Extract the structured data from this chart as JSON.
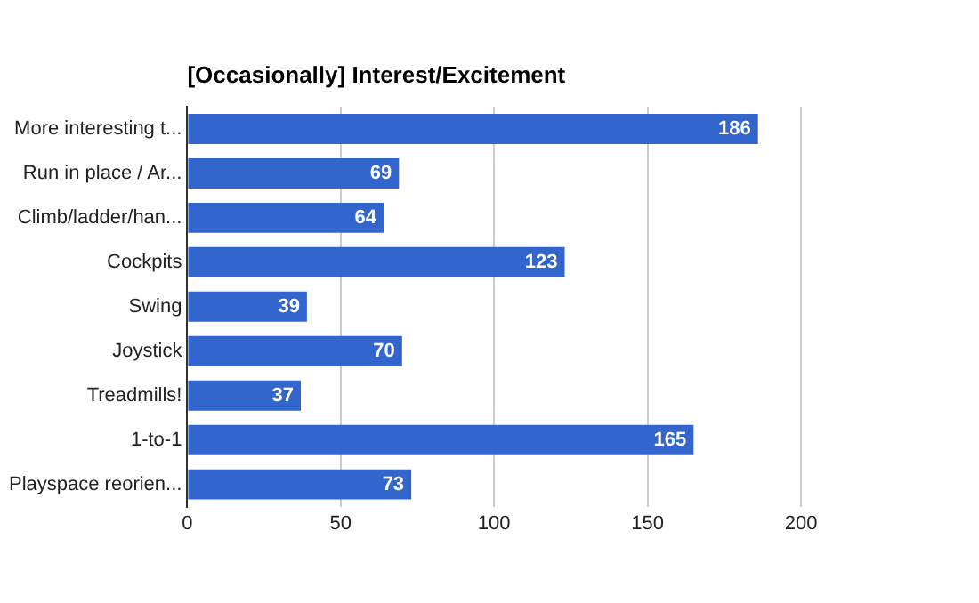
{
  "chart_data": {
    "type": "bar",
    "orientation": "horizontal",
    "title": "[Occasionally] Interest/Excitement",
    "categories": [
      "More interesting t...",
      "Run in place / Ar...",
      "Climb/ladder/han...",
      "Cockpits",
      "Swing",
      "Joystick",
      "Treadmills!",
      "1-to-1",
      "Playspace reorien..."
    ],
    "values": [
      186,
      69,
      64,
      123,
      39,
      70,
      37,
      165,
      73
    ],
    "color": "#3366cc",
    "xlim": [
      0,
      200
    ],
    "xticks": [
      0,
      50,
      100,
      150,
      200
    ],
    "grid": "x",
    "data_labels": true,
    "legend": false
  }
}
